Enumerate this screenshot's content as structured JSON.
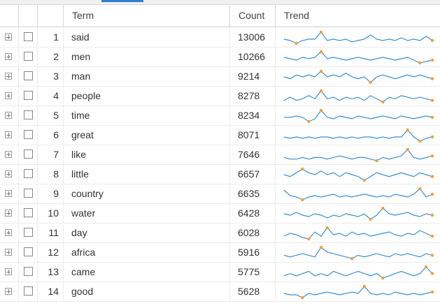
{
  "table": {
    "columns": [
      "Term",
      "Count",
      "Trend"
    ],
    "rows": [
      {
        "index": 1,
        "term": "said",
        "count": 13006,
        "trend": [
          5,
          4,
          2,
          4,
          5,
          5,
          10,
          4,
          5,
          4,
          5,
          3,
          4,
          5,
          8,
          5,
          4,
          5,
          4,
          6,
          4,
          5,
          4,
          7,
          4
        ]
      },
      {
        "index": 2,
        "term": "men",
        "count": 10266,
        "trend": [
          6,
          5,
          4,
          6,
          5,
          6,
          10,
          5,
          6,
          5,
          4,
          5,
          6,
          5,
          4,
          5,
          6,
          5,
          4,
          5,
          6,
          4,
          2,
          3,
          4
        ]
      },
      {
        "index": 3,
        "term": "man",
        "count": 9214,
        "trend": [
          5,
          4,
          6,
          5,
          6,
          5,
          8,
          5,
          6,
          5,
          7,
          5,
          4,
          5,
          2,
          5,
          6,
          5,
          4,
          5,
          6,
          5,
          6,
          5,
          4
        ]
      },
      {
        "index": 4,
        "term": "people",
        "count": 8278,
        "trend": [
          4,
          6,
          4,
          5,
          7,
          5,
          10,
          5,
          6,
          4,
          6,
          5,
          6,
          4,
          7,
          5,
          3,
          6,
          5,
          7,
          6,
          5,
          6,
          5,
          4
        ]
      },
      {
        "index": 5,
        "term": "time",
        "count": 8234,
        "trend": [
          5,
          5,
          6,
          5,
          2,
          4,
          10,
          5,
          4,
          6,
          5,
          4,
          6,
          5,
          4,
          5,
          6,
          5,
          4,
          6,
          5,
          4,
          5,
          6,
          5
        ]
      },
      {
        "index": 6,
        "term": "great",
        "count": 8071,
        "trend": [
          5,
          4,
          5,
          4,
          5,
          4,
          5,
          5,
          4,
          5,
          4,
          5,
          4,
          5,
          5,
          4,
          5,
          4,
          5,
          5,
          10,
          5,
          2,
          4,
          5
        ]
      },
      {
        "index": 7,
        "term": "like",
        "count": 7646,
        "trend": [
          5,
          4,
          4,
          5,
          4,
          5,
          5,
          4,
          5,
          6,
          5,
          4,
          5,
          5,
          4,
          3,
          5,
          4,
          5,
          6,
          10,
          5,
          4,
          5,
          6
        ]
      },
      {
        "index": 8,
        "term": "little",
        "count": 6657,
        "trend": [
          5,
          4,
          6,
          8,
          6,
          5,
          7,
          5,
          6,
          4,
          6,
          5,
          4,
          2,
          4,
          6,
          5,
          4,
          5,
          6,
          5,
          4,
          6,
          5,
          4
        ]
      },
      {
        "index": 9,
        "term": "country",
        "count": 6635,
        "trend": [
          9,
          5,
          4,
          2,
          4,
          5,
          4,
          5,
          6,
          4,
          5,
          4,
          5,
          6,
          5,
          4,
          5,
          4,
          6,
          5,
          4,
          6,
          10,
          4,
          6
        ]
      },
      {
        "index": 10,
        "term": "water",
        "count": 6428,
        "trend": [
          6,
          5,
          7,
          5,
          4,
          6,
          5,
          3,
          5,
          4,
          6,
          5,
          4,
          6,
          2,
          5,
          10,
          6,
          5,
          6,
          7,
          5,
          4,
          6,
          5
        ]
      },
      {
        "index": 11,
        "term": "day",
        "count": 6028,
        "trend": [
          4,
          6,
          5,
          3,
          2,
          7,
          4,
          10,
          5,
          6,
          4,
          7,
          5,
          6,
          4,
          5,
          6,
          7,
          5,
          4,
          6,
          5,
          8,
          6,
          4
        ]
      },
      {
        "index": 12,
        "term": "africa",
        "count": 5916,
        "trend": [
          5,
          4,
          5,
          6,
          5,
          4,
          10,
          7,
          6,
          5,
          4,
          3,
          5,
          4,
          5,
          6,
          5,
          4,
          6,
          5,
          6,
          5,
          4,
          6,
          5
        ]
      },
      {
        "index": 13,
        "term": "came",
        "count": 5775,
        "trend": [
          4,
          5,
          4,
          5,
          6,
          4,
          5,
          4,
          6,
          5,
          4,
          5,
          6,
          5,
          4,
          5,
          3,
          4,
          5,
          6,
          5,
          4,
          5,
          8,
          5
        ]
      },
      {
        "index": 14,
        "term": "good",
        "count": 5628,
        "trend": [
          5,
          4,
          4,
          2,
          5,
          4,
          5,
          6,
          5,
          4,
          5,
          6,
          5,
          10,
          5,
          4,
          5,
          4,
          6,
          5,
          4,
          5,
          4,
          5,
          6
        ]
      }
    ]
  }
}
